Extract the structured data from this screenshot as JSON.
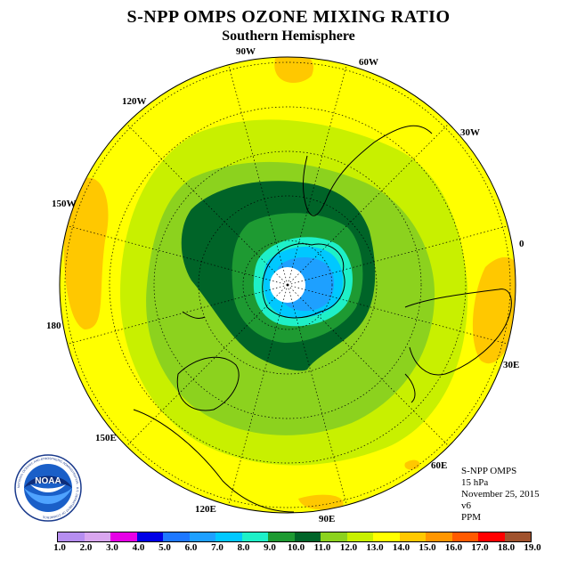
{
  "header": {
    "title": "S-NPP OMPS OZONE MIXING RATIO",
    "subtitle": "Southern Hemisphere"
  },
  "longitude_labels": [
    "90W",
    "60W",
    "30W",
    "0",
    "30E",
    "60E",
    "90E",
    "120E",
    "150E",
    "180",
    "150W",
    "120W"
  ],
  "info": {
    "instrument": "S-NPP OMPS",
    "level": "15 hPa",
    "date": "November 25, 2015",
    "version": "v6",
    "units": "PPM"
  },
  "logo": {
    "text": "NOAA",
    "ring_text": "NATIONAL OCEANIC AND ATMOSPHERIC ADMINISTRATION · U.S. DEPARTMENT OF COMMERCE"
  },
  "colorbar": {
    "colors": [
      "#b68ef0",
      "#d9a6ef",
      "#e600e6",
      "#0000e6",
      "#1e78ff",
      "#1ea0ff",
      "#00c8ff",
      "#1ef0c8",
      "#1e9a32",
      "#006428",
      "#8cd21e",
      "#c8f000",
      "#ffff00",
      "#ffc800",
      "#ff9600",
      "#ff5a00",
      "#ff0000",
      "#a0522d"
    ],
    "labels": [
      "1.0",
      "2.0",
      "3.0",
      "4.0",
      "5.0",
      "6.0",
      "7.0",
      "8.0",
      "9.0",
      "10.0",
      "11.0",
      "12.0",
      "13.0",
      "14.0",
      "15.0",
      "16.0",
      "17.0",
      "18.0",
      "19.0"
    ]
  },
  "field_colors": {
    "yellow": "#ffff00",
    "orange": "#ffc800",
    "light_green": "#c8f000",
    "green": "#8cd21e",
    "mid_green": "#1e9a32",
    "dark_green": "#006428",
    "cyan": "#1ef0c8",
    "light_blue": "#00c8ff",
    "blue": "#1ea0ff"
  }
}
